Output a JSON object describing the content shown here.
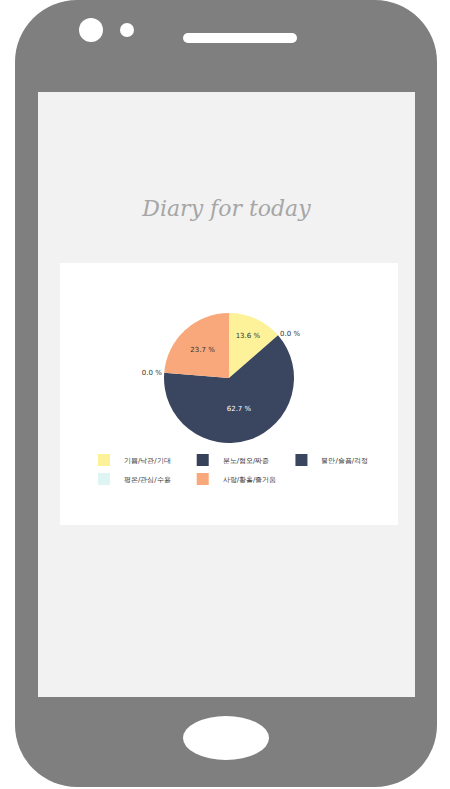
{
  "chart_data": {
    "type": "pie",
    "title": "Diary for today",
    "categories": [
      "기쁨/낙관/기대",
      "분노/혐오/짜증",
      "불안/슬픔/걱정",
      "평온/관심/수용",
      "사랑/황홀/즐거움"
    ],
    "values": [
      13.6,
      0,
      62.7,
      0,
      23.7
    ],
    "value_labels": [
      "13.6 %",
      "0.0 %",
      "62.7 %",
      "0.0 %",
      "23.7 %"
    ],
    "colors": [
      "#fdf29a",
      "#36415a",
      "#3a4560",
      "#dff5f3",
      "#f8a87a"
    ],
    "data_labels": true,
    "legend": "bottom"
  }
}
